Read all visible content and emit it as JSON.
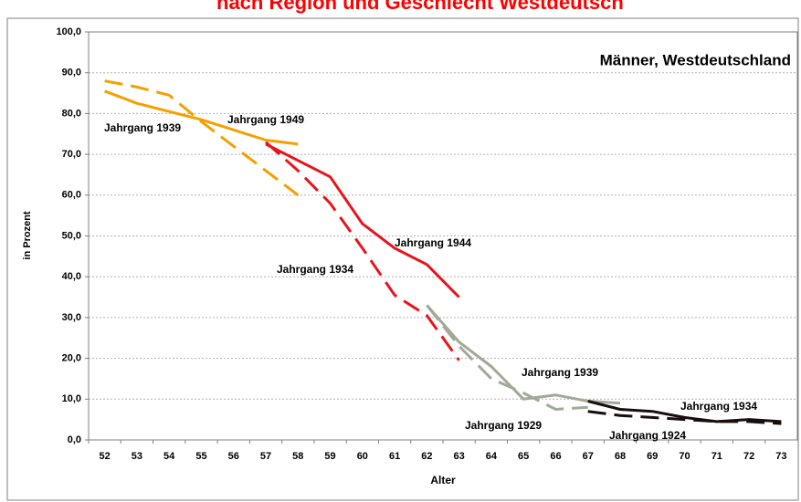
{
  "chart_data": {
    "type": "line",
    "title": "nach Region und Geschlecht Westdeutsch",
    "subtitle": "Männer, Westdeutschland",
    "x_label": "Alter",
    "y_label": "in Prozent",
    "categories": [
      "52",
      "53",
      "54",
      "55",
      "56",
      "57",
      "58",
      "59",
      "60",
      "61",
      "62",
      "63",
      "64",
      "65",
      "66",
      "67",
      "68",
      "69",
      "70",
      "71",
      "72",
      "73"
    ],
    "ylim": [
      0,
      100
    ],
    "yticks": [
      {
        "value": 0,
        "label": "0,0"
      },
      {
        "value": 10,
        "label": "10,0"
      },
      {
        "value": 20,
        "label": "20,0"
      },
      {
        "value": 30,
        "label": "30,0"
      },
      {
        "value": 40,
        "label": "40,0"
      },
      {
        "value": 50,
        "label": "50,0"
      },
      {
        "value": 60,
        "label": "60,0"
      },
      {
        "value": 70,
        "label": "70,0"
      },
      {
        "value": 80,
        "label": "80,0"
      },
      {
        "value": 90,
        "label": "90,0"
      },
      {
        "value": 100,
        "label": "100,0"
      }
    ],
    "grid": true,
    "series": [
      {
        "name": "Jahrgang 1939",
        "color": "#f5a000",
        "dashed": false,
        "values": [
          85.5,
          82.5,
          80.5,
          78.5,
          76,
          73.5,
          72.5,
          null,
          null,
          null,
          null,
          null,
          null,
          null,
          null,
          null,
          null,
          null,
          null,
          null,
          null,
          null
        ]
      },
      {
        "name": "Jahrgang 1949",
        "color": "#f5a000",
        "dashed": true,
        "values": [
          88,
          86.5,
          84.5,
          78,
          72,
          66,
          60,
          null,
          null,
          null,
          null,
          null,
          null,
          null,
          null,
          null,
          null,
          null,
          null,
          null,
          null,
          null
        ]
      },
      {
        "name": "Jahrgang 1944",
        "color": "#e8141c",
        "dashed": false,
        "values": [
          null,
          null,
          null,
          null,
          null,
          72.5,
          68.5,
          64.5,
          53,
          47,
          43,
          35,
          null,
          null,
          null,
          null,
          null,
          null,
          null,
          null,
          null,
          null
        ]
      },
      {
        "name": "Jahrgang 1934",
        "color": "#e8141c",
        "dashed": true,
        "values": [
          null,
          null,
          null,
          null,
          null,
          73,
          66,
          58,
          47,
          35.5,
          30.5,
          19.5,
          null,
          null,
          null,
          null,
          null,
          null,
          null,
          null,
          null,
          null
        ]
      },
      {
        "name": "Jahrgang 1939",
        "color": "#a0aa98",
        "dashed": false,
        "values": [
          null,
          null,
          null,
          null,
          null,
          null,
          null,
          null,
          null,
          null,
          33,
          24,
          18,
          10,
          11,
          9.5,
          9,
          null,
          null,
          null,
          null,
          null
        ]
      },
      {
        "name": "Jahrgang 1929",
        "color": "#a0aa98",
        "dashed": true,
        "values": [
          null,
          null,
          null,
          null,
          null,
          null,
          null,
          null,
          null,
          null,
          33,
          23,
          15,
          11.5,
          7.5,
          8,
          null,
          null,
          null,
          null,
          null,
          null
        ]
      },
      {
        "name": "Jahrgang 1934",
        "color": "#1a0d0d",
        "dashed": false,
        "values": [
          null,
          null,
          null,
          null,
          null,
          null,
          null,
          null,
          null,
          null,
          null,
          null,
          null,
          null,
          null,
          9.5,
          7.5,
          7,
          5.5,
          4.5,
          5,
          4.5
        ]
      },
      {
        "name": "Jahrgang 1924",
        "color": "#1a0d0d",
        "dashed": true,
        "values": [
          null,
          null,
          null,
          null,
          null,
          null,
          null,
          null,
          null,
          null,
          null,
          null,
          null,
          null,
          null,
          7,
          6,
          5.5,
          5,
          4.5,
          4.5,
          4
        ]
      }
    ]
  }
}
